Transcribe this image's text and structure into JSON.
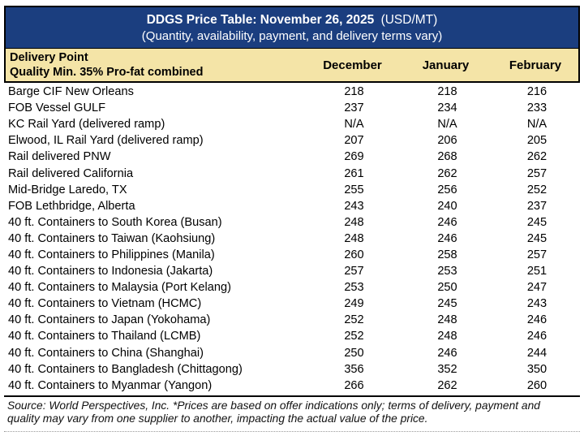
{
  "header": {
    "title": "DDGS Price Table: November 26, 2025",
    "title_suffix": "(USD/MT)",
    "subtitle": "(Quantity, availability, payment, and delivery terms vary)"
  },
  "table": {
    "col_header_line1": "Delivery Point",
    "col_header_line2": "Quality Min. 35% Pro-fat combined",
    "months": [
      "December",
      "January",
      "February"
    ],
    "rows": [
      {
        "name": "Barge CIF New Orleans",
        "december": "218",
        "january": "218",
        "february": "216"
      },
      {
        "name": "FOB Vessel GULF",
        "december": "237",
        "january": "234",
        "february": "233"
      },
      {
        "name": "KC Rail Yard (delivered ramp)",
        "december": "N/A",
        "january": "N/A",
        "february": "N/A"
      },
      {
        "name": "Elwood, IL Rail Yard (delivered ramp)",
        "december": "207",
        "january": "206",
        "february": "205"
      },
      {
        "name": "Rail delivered PNW",
        "december": "269",
        "january": "268",
        "february": "262"
      },
      {
        "name": "Rail delivered California",
        "december": "261",
        "january": "262",
        "february": "257"
      },
      {
        "name": "Mid-Bridge Laredo, TX",
        "december": "255",
        "january": "256",
        "february": "252"
      },
      {
        "name": "FOB Lethbridge, Alberta",
        "december": "243",
        "january": "240",
        "february": "237"
      },
      {
        "name": "40 ft. Containers to South Korea (Busan)",
        "december": "248",
        "january": "246",
        "february": "245"
      },
      {
        "name": "40 ft. Containers to Taiwan (Kaohsiung)",
        "december": "248",
        "january": "246",
        "february": "245"
      },
      {
        "name": "40 ft. Containers to Philippines (Manila)",
        "december": "260",
        "january": "258",
        "february": "257"
      },
      {
        "name": "40 ft. Containers to Indonesia (Jakarta)",
        "december": "257",
        "january": "253",
        "february": "251"
      },
      {
        "name": "40 ft. Containers to Malaysia (Port Kelang)",
        "december": "253",
        "january": "250",
        "february": "247"
      },
      {
        "name": "40 ft. Containers to Vietnam (HCMC)",
        "december": "249",
        "january": "245",
        "february": "243"
      },
      {
        "name": "40 ft. Containers to Japan (Yokohama)",
        "december": "252",
        "january": "248",
        "february": "246"
      },
      {
        "name": "40 ft. Containers to Thailand (LCMB)",
        "december": "252",
        "january": "248",
        "february": "246"
      },
      {
        "name": "40 ft. Containers to China (Shanghai)",
        "december": "250",
        "january": "246",
        "february": "244"
      },
      {
        "name": "40 ft. Containers to Bangladesh (Chittagong)",
        "december": "356",
        "january": "352",
        "february": "350"
      },
      {
        "name": "40 ft. Containers to Myanmar (Yangon)",
        "december": "266",
        "january": "262",
        "february": "260"
      }
    ]
  },
  "footer": {
    "lines": [
      "Source: World Perspectives, Inc. *Prices are based on offer indications only; terms of delivery, payment and",
      "quality may vary from one supplier to another, impacting the actual value of the price."
    ]
  },
  "colors": {
    "header_bg": "#1B3E7F",
    "header_text": "#FFFFFF",
    "subheader_bg": "#F4E4A7",
    "border": "#000000",
    "body_text": "#000000"
  }
}
